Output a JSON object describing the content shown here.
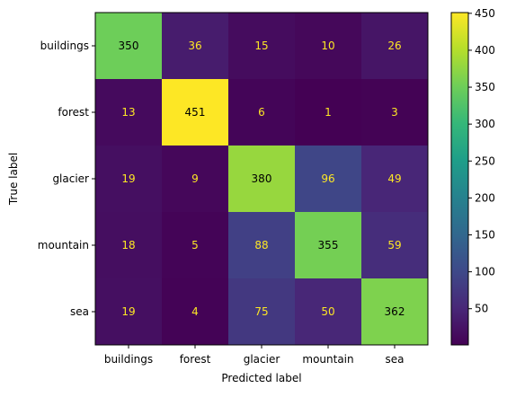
{
  "chart_data": {
    "type": "heatmap",
    "xlabel": "Predicted label",
    "ylabel": "True label",
    "x_categories": [
      "buildings",
      "forest",
      "glacier",
      "mountain",
      "sea"
    ],
    "y_categories": [
      "buildings",
      "forest",
      "glacier",
      "mountain",
      "sea"
    ],
    "values": [
      [
        350,
        36,
        15,
        10,
        26
      ],
      [
        13,
        451,
        6,
        1,
        3
      ],
      [
        19,
        9,
        380,
        96,
        49
      ],
      [
        18,
        5,
        88,
        355,
        59
      ],
      [
        19,
        4,
        75,
        50,
        362
      ]
    ],
    "colormap": "viridis",
    "colorbar": {
      "min": 1,
      "max": 451,
      "ticks": [
        50,
        100,
        150,
        200,
        250,
        300,
        350,
        400,
        450
      ]
    },
    "text_colors": {
      "on_dark": "#fde725",
      "on_light": "#000000"
    },
    "grid": false
  }
}
